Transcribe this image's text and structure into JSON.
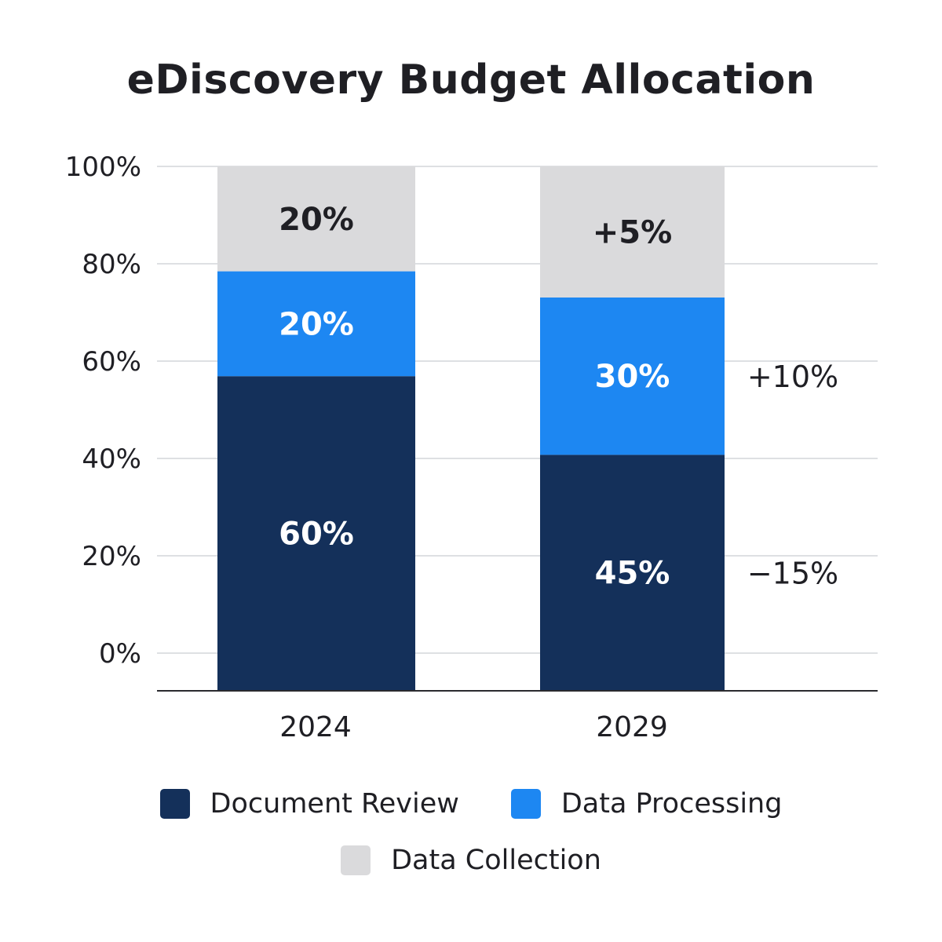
{
  "chart_data": {
    "type": "bar",
    "stacked": true,
    "title": "eDiscovery Budget Allocation",
    "xlabel": "",
    "ylabel": "",
    "categories": [
      "2024",
      "2029"
    ],
    "y_ticks": [
      "0%",
      "20%",
      "40%",
      "60%",
      "80%",
      "100%"
    ],
    "ylim": [
      0,
      100
    ],
    "grid": true,
    "legend_position": "bottom",
    "series": [
      {
        "name": "Document Review",
        "color": "#14305a",
        "values": [
          60,
          45
        ],
        "labels": [
          "60%",
          "45%"
        ],
        "label_color": "#ffffff"
      },
      {
        "name": "Data Processing",
        "color": "#1d87f2",
        "values": [
          20,
          30
        ],
        "labels": [
          "20%",
          "30%"
        ],
        "label_color": "#ffffff"
      },
      {
        "name": "Data Collection",
        "color": "#dadadc",
        "values": [
          20,
          25
        ],
        "labels": [
          "20%",
          "+5%"
        ],
        "label_color": "#1f1f24"
      }
    ],
    "annotations": [
      {
        "text": "+10%",
        "category": "2029",
        "series": "Data Processing"
      },
      {
        "text": "−15%",
        "category": "2029",
        "series": "Document Review"
      }
    ]
  },
  "colors": {
    "grid": "#d4d5da",
    "axis": "#2a2a2e",
    "text": "#1f1f24"
  }
}
